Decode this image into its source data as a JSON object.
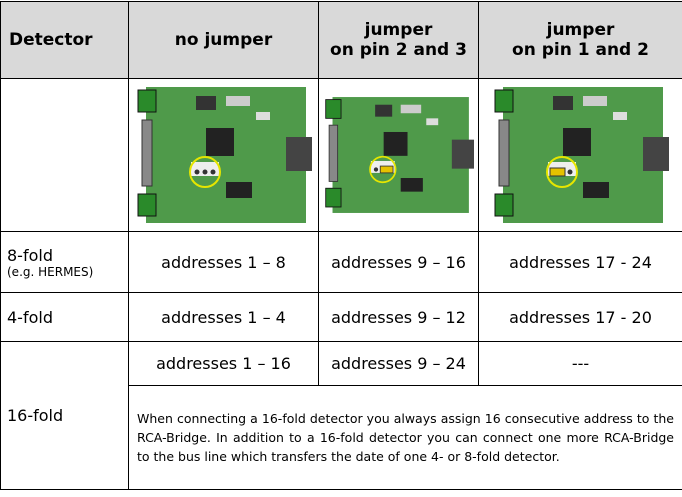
{
  "table": {
    "header": [
      [
        "Detector"
      ],
      [
        "no jumper"
      ],
      [
        "jumper",
        "on pin 2 and 3"
      ],
      [
        "jumper",
        "on pin 1 and 2"
      ]
    ],
    "rows": [
      {
        "label": "8-fold",
        "sublabel": "(e.g. HERMES)",
        "cells": [
          "addresses 1 – 8",
          "addresses 9 – 16",
          "addresses 17 - 24"
        ]
      },
      {
        "label": "4-fold",
        "cells": [
          "addresses 1 – 4",
          "addresses 9 – 12",
          "addresses 17 - 20"
        ]
      },
      {
        "label": "16-fold",
        "cells": [
          "addresses 1 – 16",
          "addresses 9 – 24",
          "---"
        ],
        "note": "When connecting a 16-fold detector you always assign 16 consecutive address to the RCA-Bridge. In addition to a 16-fold detector you can connect one more RCA-Bridge to the bus line which transfers the date of one 4- or 8-fold detector."
      }
    ]
  }
}
